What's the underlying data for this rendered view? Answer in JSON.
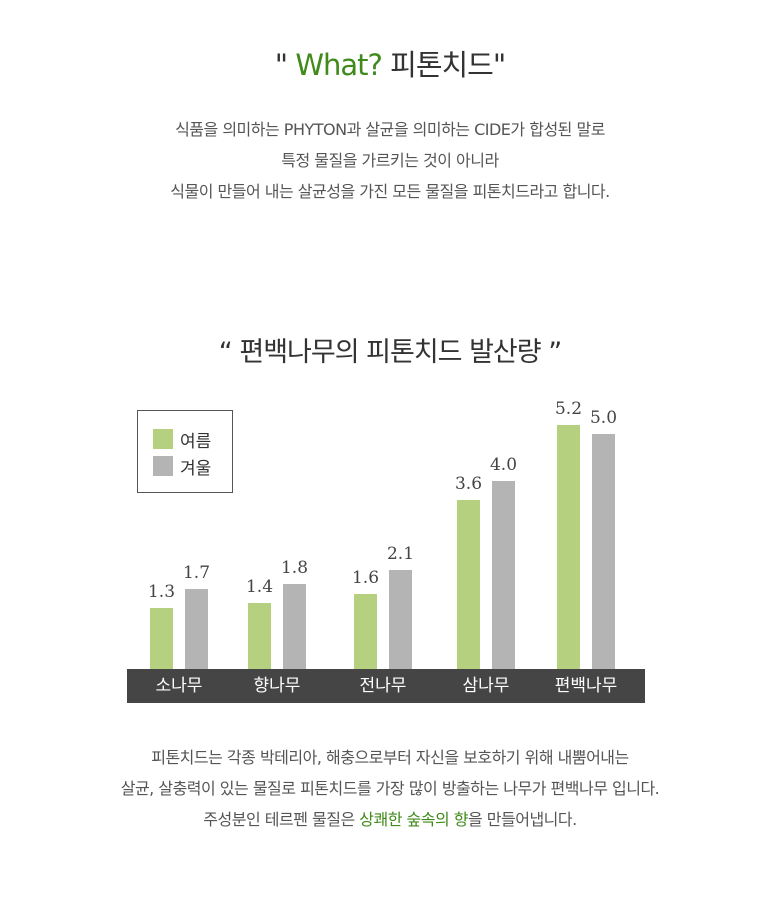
{
  "header": {
    "quote_open": "\"",
    "title_green": "What?",
    "title_dark": "피톤치드",
    "quote_close": "\""
  },
  "intro": [
    "식품을 의미하는 PHYTON과 살균을 의미하는 CIDE가 합성된 말로",
    "특정 물질을 가르키는 것이 아니라",
    "식물이 만들어 내는 살균성을 가진 모든 물질을 피톤치드라고 합니다."
  ],
  "chart_data": {
    "type": "bar",
    "title": "“ 편백나무의 피톤치드 발산량 ”",
    "categories": [
      "소나무",
      "향나무",
      "전나무",
      "삼나무",
      "편백나무"
    ],
    "series": [
      {
        "name": "여름",
        "color": "#b5d07f",
        "values": [
          1.3,
          1.4,
          1.6,
          3.6,
          5.2
        ]
      },
      {
        "name": "겨울",
        "color": "#b4b4b4",
        "values": [
          1.7,
          1.8,
          2.1,
          4.0,
          5.0
        ]
      }
    ],
    "value_labels": [
      [
        "1.3",
        "1.4",
        "1.6",
        "3.6",
        "5.2"
      ],
      [
        "1.7",
        "1.8",
        "2.1",
        "4.0",
        "5.0"
      ]
    ],
    "ylim": [
      0,
      5.2
    ],
    "legend": "top-left",
    "grid": false
  },
  "footer": {
    "line1": "피톤치드는 각종 박테리아, 해충으로부터 자신을 보호하기 위해 내뿜어내는",
    "line2": "살균, 살충력이 있는 물질로 피톤치드를 가장 많이 방출하는 나무가 편백나무 입니다.",
    "line3_pre": "주성분인 테르펜 물질은 ",
    "line3_highlight": "상쾌한 숲속의 향",
    "line3_post": "을 만들어냅니다.",
    "highlight_color": "#3f8a1a"
  }
}
